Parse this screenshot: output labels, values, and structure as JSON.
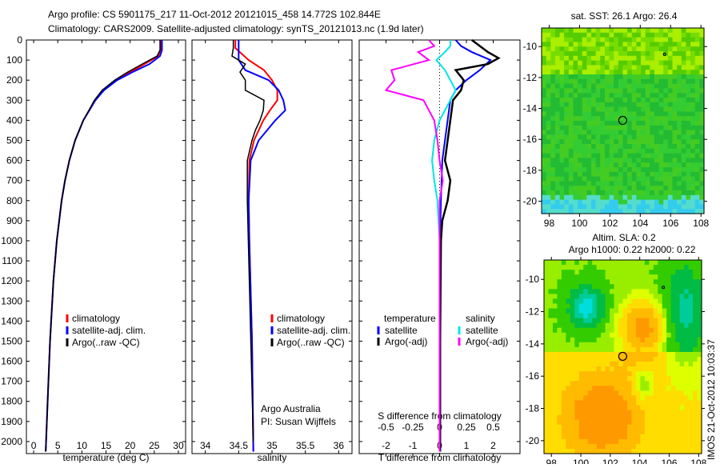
{
  "title_line1": "Argo profile: CS 5901175_217 11-Oct-2012 20121015_458 14.772S 102.844E",
  "title_line2": "Climatology: CARS2009. Satellite-adjusted climatology: synTS_20121013.nc (1.9d later)",
  "colors": {
    "climatology": "#ff0000",
    "satellite": "#0000ff",
    "argo": "#000000",
    "sal_sat": "#00e5e5",
    "sal_argo": "#ff00ff"
  },
  "chart_data": [
    {
      "type": "line",
      "name": "temperature",
      "xlabel": "temperature (deg C)",
      "xlim": [
        -1.5,
        31.5
      ],
      "xticks": [
        0,
        5,
        10,
        15,
        20,
        25,
        30
      ],
      "ylim": [
        0,
        2060
      ],
      "yticks": [
        0,
        100,
        200,
        300,
        400,
        500,
        600,
        700,
        800,
        900,
        1000,
        1100,
        1200,
        1300,
        1400,
        1500,
        1600,
        1700,
        1800,
        1900,
        2000
      ],
      "legend": [
        "climatology",
        "satellite-adj. clim.",
        "Argo(..raw -QC)"
      ],
      "series": [
        {
          "name": "climatology",
          "depth": [
            0,
            50,
            80,
            120,
            160,
            200,
            250,
            300,
            400,
            500,
            600,
            700,
            800,
            1000,
            1200,
            1500,
            1800,
            2050
          ],
          "values": [
            26.4,
            26.3,
            25.8,
            23,
            20,
            17,
            14.5,
            12.8,
            10.3,
            8.6,
            7.4,
            6.5,
            5.8,
            4.8,
            4.1,
            3.4,
            2.9,
            2.5
          ]
        },
        {
          "name": "satellite-adj. clim.",
          "depth": [
            0,
            50,
            80,
            120,
            160,
            200,
            250,
            300,
            400,
            500,
            600,
            700,
            800,
            1000,
            1200,
            1500,
            1800,
            2050
          ],
          "values": [
            26.6,
            26.6,
            26.2,
            24,
            20.5,
            17.3,
            14.6,
            12.8,
            10.3,
            8.6,
            7.4,
            6.5,
            5.8,
            4.8,
            4.1,
            3.4,
            2.9,
            2.5
          ]
        },
        {
          "name": "Argo(..raw -QC)",
          "depth": [
            0,
            50,
            80,
            120,
            160,
            200,
            250,
            300,
            400,
            500,
            600,
            700,
            800,
            1000,
            1200,
            1500,
            1800,
            2050
          ],
          "values": [
            26.2,
            26.2,
            25.6,
            22.5,
            19.5,
            16.8,
            14.2,
            12.6,
            10.3,
            8.6,
            7.4,
            6.5,
            5.8,
            4.8,
            4.1,
            3.4,
            2.9,
            2.5
          ]
        }
      ]
    },
    {
      "type": "line",
      "name": "salinity",
      "xlabel": "salinity",
      "xlim": [
        33.8,
        36.2
      ],
      "xticks": [
        34,
        34.5,
        35,
        35.5,
        36
      ],
      "ylim": [
        0,
        2060
      ],
      "legend": [
        "climatology",
        "satellite-adj. clim.",
        "Argo(..raw -QC)"
      ],
      "annotation": [
        "Argo Australia",
        "PI: Susan Wijffels"
      ],
      "series": [
        {
          "name": "climatology",
          "depth": [
            0,
            40,
            100,
            150,
            200,
            250,
            300,
            350,
            400,
            500,
            600,
            800,
            1000,
            1500,
            2050
          ],
          "values": [
            34.45,
            34.45,
            34.65,
            34.88,
            35.0,
            35.08,
            35.08,
            34.97,
            34.87,
            34.73,
            34.66,
            34.65,
            34.66,
            34.7,
            34.72
          ]
        },
        {
          "name": "satellite-adj. clim.",
          "depth": [
            0,
            40,
            100,
            150,
            200,
            250,
            300,
            350,
            400,
            500,
            600,
            800,
            1000,
            1500,
            2050
          ],
          "values": [
            34.5,
            34.5,
            34.5,
            34.6,
            34.95,
            35.1,
            35.17,
            35.2,
            35.05,
            34.8,
            34.68,
            34.65,
            34.66,
            34.7,
            34.72
          ]
        },
        {
          "name": "Argo(..raw -QC)",
          "depth": [
            0,
            40,
            80,
            120,
            160,
            200,
            250,
            300,
            350,
            400,
            450,
            500,
            600,
            800,
            1200,
            2000
          ],
          "values": [
            34.42,
            34.42,
            34.4,
            34.6,
            34.52,
            34.6,
            34.6,
            34.88,
            34.87,
            34.82,
            34.75,
            34.7,
            34.63,
            34.63,
            34.66,
            34.72
          ]
        }
      ]
    },
    {
      "type": "line",
      "name": "differences",
      "xlabel": "T difference from climatology",
      "xlim": [
        -3,
        3
      ],
      "xticks": [
        -2,
        -1,
        0,
        1,
        2
      ],
      "x2label": "S difference from climatology",
      "x2ticks": [
        "-0.5",
        "-0.25",
        "0",
        "0.25",
        "0.5"
      ],
      "legend_t": {
        "title": "temperature",
        "items": [
          "satellite",
          "Argo(-adj)"
        ]
      },
      "legend_s": {
        "title": "salinity",
        "items": [
          "satellite",
          "Argo(-adj)"
        ]
      },
      "series": [
        {
          "name": "T satellite",
          "depth": [
            0,
            30,
            60,
            100,
            150,
            200,
            250,
            300,
            400,
            500,
            600,
            800,
            1000,
            1500,
            2050
          ],
          "values": [
            0.6,
            0.8,
            1.2,
            1.9,
            1.5,
            1.0,
            0.6,
            0.4,
            0.3,
            0.2,
            0.1,
            0.05,
            0.02,
            0.02,
            0.02
          ]
        },
        {
          "name": "T Argo(-adj)",
          "depth": [
            0,
            30,
            60,
            90,
            120,
            150,
            200,
            250,
            300,
            400,
            500,
            600,
            700,
            800,
            900,
            1000,
            1500,
            2050
          ],
          "values": [
            1.2,
            1.5,
            1.8,
            2.2,
            1.8,
            0.6,
            0.9,
            0.8,
            0.5,
            0.4,
            0.3,
            0.2,
            0.4,
            0.3,
            0.1,
            0.05,
            0.02,
            0.02
          ]
        },
        {
          "name": "S satellite",
          "depth": [
            0,
            30,
            60,
            100,
            150,
            200,
            250,
            300,
            400,
            500,
            600,
            700,
            800,
            1000,
            1500,
            2050
          ],
          "values": [
            0.1,
            0.1,
            0.05,
            -0.03,
            0.05,
            0.1,
            0.15,
            0.1,
            0.0,
            -0.05,
            -0.07,
            -0.05,
            -0.02,
            0.0,
            0.0,
            0.0
          ]
        },
        {
          "name": "S Argo(-adj)",
          "depth": [
            0,
            30,
            60,
            100,
            150,
            200,
            250,
            300,
            400,
            500,
            600,
            700,
            800,
            1000,
            1500,
            2050
          ],
          "values": [
            -0.1,
            -0.05,
            -0.2,
            -0.1,
            -0.45,
            -0.42,
            -0.5,
            -0.15,
            -0.05,
            -0.02,
            0.0,
            0.03,
            0.0,
            0.0,
            0.0,
            0.0
          ]
        }
      ]
    },
    {
      "type": "heatmap",
      "name": "sst-map",
      "title": "sat. SST: 26.1  Argo: 26.4",
      "xticks": [
        98,
        100,
        102,
        104,
        106,
        108
      ],
      "yticks": [
        -10,
        -12,
        -14,
        -16,
        -18,
        -20
      ],
      "xlim": [
        97.5,
        108.2
      ],
      "ylim": [
        -20.8,
        -8.8
      ],
      "argo_position": [
        102.844,
        -14.772
      ]
    },
    {
      "type": "heatmap",
      "name": "sla-map",
      "title": "Altim. SLA: 0.2",
      "subtitle": "Argo h1000: 0.22 h2000: 0.22",
      "xticks": [
        98,
        100,
        102,
        104,
        106,
        108
      ],
      "yticks": [
        -10,
        -12,
        -14,
        -16,
        -18,
        -20
      ],
      "xlim": [
        97.5,
        108.2
      ],
      "ylim": [
        -20.8,
        -8.8
      ],
      "argo_position": [
        102.844,
        -14.772
      ]
    }
  ],
  "footer_stamp": "IMOS 21-Oct-2012 10:03:37"
}
